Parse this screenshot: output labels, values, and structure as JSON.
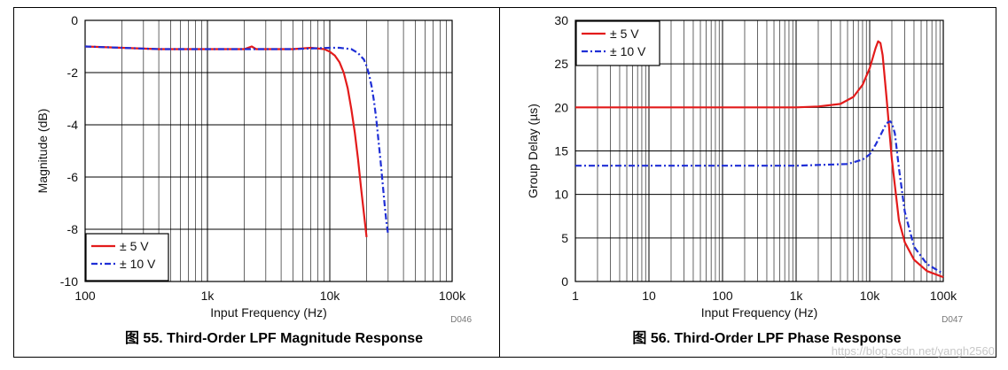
{
  "panels": [
    {
      "caption": "图 55. Third-Order LPF Magnitude Response",
      "code": "D046"
    },
    {
      "caption": "图 56. Third-Order LPF Phase Response",
      "code": "D047"
    }
  ],
  "watermark": "https://blog.csdn.net/yangh2560",
  "chart_data": [
    {
      "type": "line",
      "xscale": "log",
      "xlim": [
        100,
        100000
      ],
      "ylim": [
        -10,
        0
      ],
      "xlabel": "Input Frequency (Hz)",
      "ylabel": "Magnitude (dB)",
      "xticks": [
        100,
        1000,
        10000,
        100000
      ],
      "xtick_labels": [
        "100",
        "1k",
        "10k",
        "100k"
      ],
      "yticks": [
        0,
        -2,
        -4,
        -6,
        -8,
        -10
      ],
      "ytick_labels": [
        "0",
        "-2",
        "-4",
        "-6",
        "-8",
        "-10"
      ],
      "grid": true,
      "legend_position": "bottom-left",
      "series": [
        {
          "name": "± 5 V",
          "color": "#e31b1b",
          "dash": "solid",
          "x": [
            100,
            200,
            400,
            1000,
            2000,
            2300,
            2500,
            3000,
            5000,
            7000,
            9000,
            10000,
            11000,
            12000,
            13000,
            14000,
            15000,
            16000,
            17000,
            18000,
            19000,
            20000
          ],
          "y": [
            -1.0,
            -1.05,
            -1.1,
            -1.1,
            -1.1,
            -1.0,
            -1.1,
            -1.1,
            -1.1,
            -1.05,
            -1.1,
            -1.2,
            -1.35,
            -1.6,
            -2.0,
            -2.6,
            -3.4,
            -4.3,
            -5.3,
            -6.4,
            -7.4,
            -8.3
          ]
        },
        {
          "name": "± 10 V",
          "color": "#1f2fd6",
          "dash": "dashdot",
          "x": [
            100,
            200,
            400,
            1000,
            2000,
            5000,
            10000,
            12000,
            15000,
            17000,
            19000,
            20000,
            21000,
            22000,
            23000,
            24000,
            25000,
            26000,
            27000,
            28000,
            29000,
            30000
          ],
          "y": [
            -1.0,
            -1.05,
            -1.1,
            -1.1,
            -1.1,
            -1.1,
            -1.05,
            -1.05,
            -1.1,
            -1.25,
            -1.5,
            -1.75,
            -2.1,
            -2.55,
            -3.1,
            -3.8,
            -4.6,
            -5.4,
            -6.2,
            -7.0,
            -7.7,
            -8.2
          ]
        }
      ]
    },
    {
      "type": "line",
      "xscale": "log",
      "xlim": [
        1,
        100000
      ],
      "ylim": [
        0,
        30
      ],
      "xlabel": "Input Frequency (Hz)",
      "ylabel": "Group Delay (µs)",
      "xticks": [
        1,
        10,
        100,
        1000,
        10000,
        100000
      ],
      "xtick_labels": [
        "1",
        "10",
        "100",
        "1k",
        "10k",
        "100k"
      ],
      "yticks": [
        0,
        5,
        10,
        15,
        20,
        25,
        30
      ],
      "ytick_labels": [
        "0",
        "5",
        "10",
        "15",
        "20",
        "25",
        "30"
      ],
      "grid": true,
      "legend_position": "top-left",
      "series": [
        {
          "name": "± 5 V",
          "color": "#e31b1b",
          "dash": "solid",
          "x": [
            1,
            10,
            100,
            1000,
            2000,
            4000,
            6000,
            8000,
            10000,
            12000,
            13000,
            14000,
            15000,
            17000,
            20000,
            25000,
            30000,
            40000,
            60000,
            100000
          ],
          "y": [
            20,
            20,
            20,
            20,
            20.1,
            20.4,
            21.2,
            22.6,
            24.5,
            26.8,
            27.6,
            27.4,
            26.0,
            21.0,
            14.0,
            7.0,
            4.5,
            2.5,
            1.2,
            0.5
          ]
        },
        {
          "name": "± 10 V",
          "color": "#1f2fd6",
          "dash": "dashdot",
          "x": [
            1,
            10,
            100,
            1000,
            5000,
            8000,
            10000,
            12000,
            15000,
            17000,
            19000,
            20000,
            22000,
            25000,
            30000,
            40000,
            60000,
            100000
          ],
          "y": [
            13.3,
            13.3,
            13.3,
            13.3,
            13.5,
            14.0,
            14.6,
            15.7,
            17.3,
            18.2,
            18.4,
            18.2,
            17.0,
            13.0,
            8.0,
            4.0,
            2.0,
            0.9
          ]
        }
      ]
    }
  ]
}
